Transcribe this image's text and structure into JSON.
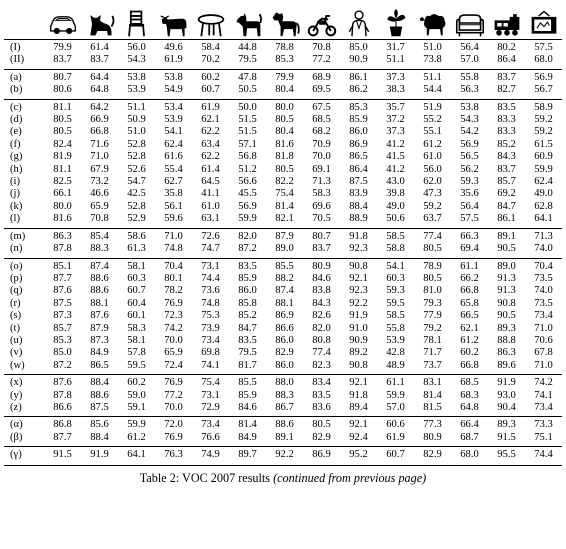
{
  "table": {
    "categories": [
      {
        "name": "car",
        "icon": "car-icon"
      },
      {
        "name": "cat",
        "icon": "cat-icon"
      },
      {
        "name": "chair",
        "icon": "chair-icon"
      },
      {
        "name": "cow",
        "icon": "cow-icon"
      },
      {
        "name": "diningtable",
        "icon": "table-icon"
      },
      {
        "name": "dog",
        "icon": "dog-icon"
      },
      {
        "name": "horse",
        "icon": "horse-icon"
      },
      {
        "name": "motorbike",
        "icon": "motorbike-icon"
      },
      {
        "name": "person",
        "icon": "person-icon"
      },
      {
        "name": "pottedplant",
        "icon": "plant-icon"
      },
      {
        "name": "sheep",
        "icon": "sheep-icon"
      },
      {
        "name": "sofa",
        "icon": "sofa-icon"
      },
      {
        "name": "train",
        "icon": "train-icon"
      },
      {
        "name": "tvmonitor",
        "icon": "tv-icon"
      }
    ],
    "groups": [
      [
        {
          "label": "(I)",
          "values": [
            "79.9",
            "61.4",
            "56.0",
            "49.6",
            "58.4",
            "44.8",
            "78.8",
            "70.8",
            "85.0",
            "31.7",
            "51.0",
            "56.4",
            "80.2",
            "57.5"
          ]
        },
        {
          "label": "(II)",
          "values": [
            "83.7",
            "83.7",
            "54.3",
            "61.9",
            "70.2",
            "79.5",
            "85.3",
            "77.2",
            "90.9",
            "51.1",
            "73.8",
            "57.0",
            "86.4",
            "68.0"
          ]
        }
      ],
      [
        {
          "label": "(a)",
          "values": [
            "80.7",
            "64.4",
            "53.8",
            "53.8",
            "60.2",
            "47.8",
            "79.9",
            "68.9",
            "86.1",
            "37.3",
            "51.1",
            "55.8",
            "83.7",
            "56.9"
          ]
        },
        {
          "label": "(b)",
          "values": [
            "80.6",
            "64.8",
            "53.9",
            "54.9",
            "60.7",
            "50.5",
            "80.4",
            "69.5",
            "86.2",
            "38.3",
            "54.4",
            "56.3",
            "82.7",
            "56.7"
          ]
        }
      ],
      [
        {
          "label": "(c)",
          "values": [
            "81.1",
            "64.2",
            "51.1",
            "53.4",
            "61.9",
            "50.0",
            "80.0",
            "67.5",
            "85.3",
            "35.7",
            "51.9",
            "53.8",
            "83.5",
            "58.9"
          ]
        },
        {
          "label": "(d)",
          "values": [
            "80.5",
            "66.9",
            "50.9",
            "53.9",
            "62.1",
            "51.5",
            "80.5",
            "68.5",
            "85.9",
            "37.2",
            "55.2",
            "54.3",
            "83.3",
            "59.2"
          ]
        },
        {
          "label": "(e)",
          "values": [
            "80.5",
            "66.8",
            "51.0",
            "54.1",
            "62.2",
            "51.5",
            "80.4",
            "68.2",
            "86.0",
            "37.3",
            "55.1",
            "54.2",
            "83.3",
            "59.2"
          ]
        },
        {
          "label": "(f)",
          "values": [
            "82.4",
            "71.6",
            "52.8",
            "62.4",
            "63.4",
            "57.1",
            "81.6",
            "70.9",
            "86.9",
            "41.2",
            "61.2",
            "56.9",
            "85.2",
            "61.5"
          ]
        },
        {
          "label": "(g)",
          "values": [
            "81.9",
            "71.0",
            "52.8",
            "61.6",
            "62.2",
            "56.8",
            "81.8",
            "70.0",
            "86.5",
            "41.5",
            "61.0",
            "56.5",
            "84.3",
            "60.9"
          ]
        },
        {
          "label": "(h)",
          "values": [
            "81.1",
            "67.9",
            "52.6",
            "55.4",
            "61.4",
            "51.2",
            "80.5",
            "69.1",
            "86.4",
            "41.2",
            "56.0",
            "56.2",
            "83.7",
            "59.9"
          ]
        },
        {
          "label": "(i)",
          "values": [
            "82.5",
            "73.2",
            "54.7",
            "62.7",
            "64.5",
            "56.6",
            "82.2",
            "71.3",
            "87.5",
            "43.0",
            "62.0",
            "59.3",
            "85.7",
            "62.4"
          ]
        },
        {
          "label": "(j)",
          "values": [
            "66.1",
            "46.6",
            "42.5",
            "35.8",
            "41.1",
            "45.5",
            "75.4",
            "58.3",
            "83.9",
            "39.8",
            "47.3",
            "35.6",
            "69.2",
            "49.0"
          ]
        },
        {
          "label": "(k)",
          "values": [
            "80.0",
            "65.9",
            "52.8",
            "56.1",
            "61.0",
            "56.9",
            "81.4",
            "69.6",
            "88.4",
            "49.0",
            "59.2",
            "56.4",
            "84.7",
            "62.8"
          ]
        },
        {
          "label": "(l)",
          "values": [
            "81.6",
            "70.8",
            "52.9",
            "59.6",
            "63.1",
            "59.9",
            "82.1",
            "70.5",
            "88.9",
            "50.6",
            "63.7",
            "57.5",
            "86.1",
            "64.1"
          ]
        }
      ],
      [
        {
          "label": "(m)",
          "values": [
            "86.3",
            "85.4",
            "58.6",
            "71.0",
            "72.6",
            "82.0",
            "87.9",
            "80.7",
            "91.8",
            "58.5",
            "77.4",
            "66.3",
            "89.1",
            "71.3"
          ]
        },
        {
          "label": "(n)",
          "values": [
            "87.8",
            "88.3",
            "61.3",
            "74.8",
            "74.7",
            "87.2",
            "89.0",
            "83.7",
            "92.3",
            "58.8",
            "80.5",
            "69.4",
            "90.5",
            "74.0"
          ]
        }
      ],
      [
        {
          "label": "(o)",
          "values": [
            "85.1",
            "87.4",
            "58.1",
            "70.4",
            "73.1",
            "83.5",
            "85.5",
            "80.9",
            "90.8",
            "54.1",
            "78.9",
            "61.1",
            "89.0",
            "70.4"
          ]
        },
        {
          "label": "(p)",
          "values": [
            "87.7",
            "88.6",
            "60.3",
            "80.1",
            "74.4",
            "85.9",
            "88.2",
            "84.6",
            "92.1",
            "60.3",
            "80.5",
            "66.2",
            "91.3",
            "73.5"
          ]
        },
        {
          "label": "(q)",
          "values": [
            "87.6",
            "88.6",
            "60.7",
            "78.2",
            "73.6",
            "86.0",
            "87.4",
            "83.8",
            "92.3",
            "59.3",
            "81.0",
            "66.8",
            "91.3",
            "74.0"
          ]
        },
        {
          "label": "(r)",
          "values": [
            "87.5",
            "88.1",
            "60.4",
            "76.9",
            "74.8",
            "85.8",
            "88.1",
            "84.3",
            "92.2",
            "59.5",
            "79.3",
            "65.8",
            "90.8",
            "73.5"
          ]
        },
        {
          "label": "(s)",
          "values": [
            "87.3",
            "87.6",
            "60.1",
            "72.3",
            "75.3",
            "85.2",
            "86.9",
            "82.6",
            "91.9",
            "58.5",
            "77.9",
            "66.5",
            "90.5",
            "73.4"
          ]
        },
        {
          "label": "(t)",
          "values": [
            "85.7",
            "87.9",
            "58.3",
            "74.2",
            "73.9",
            "84.7",
            "86.6",
            "82.0",
            "91.0",
            "55.8",
            "79.2",
            "62.1",
            "89.3",
            "71.0"
          ]
        },
        {
          "label": "(u)",
          "values": [
            "85.3",
            "87.3",
            "58.1",
            "70.0",
            "73.4",
            "83.5",
            "86.0",
            "80.8",
            "90.9",
            "53.9",
            "78.1",
            "61.2",
            "88.8",
            "70.6"
          ]
        },
        {
          "label": "(v)",
          "values": [
            "85.0",
            "84.9",
            "57.8",
            "65.9",
            "69.8",
            "79.5",
            "82.9",
            "77.4",
            "89.2",
            "42.8",
            "71.7",
            "60.2",
            "86.3",
            "67.8"
          ]
        },
        {
          "label": "(w)",
          "values": [
            "87.2",
            "86.5",
            "59.5",
            "72.4",
            "74.1",
            "81.7",
            "86.0",
            "82.3",
            "90.8",
            "48.9",
            "73.7",
            "66.8",
            "89.6",
            "71.0"
          ]
        }
      ],
      [
        {
          "label": "(x)",
          "values": [
            "87.6",
            "88.4",
            "60.2",
            "76.9",
            "75.4",
            "85.5",
            "88.0",
            "83.4",
            "92.1",
            "61.1",
            "83.1",
            "68.5",
            "91.9",
            "74.2"
          ]
        },
        {
          "label": "(y)",
          "values": [
            "87.8",
            "88.6",
            "59.0",
            "77.2",
            "73.1",
            "85.9",
            "88.3",
            "83.5",
            "91.8",
            "59.9",
            "81.4",
            "68.3",
            "93.0",
            "74.1"
          ]
        },
        {
          "label": "(z)",
          "values": [
            "86.6",
            "87.5",
            "59.1",
            "70.0",
            "72.9",
            "84.6",
            "86.7",
            "83.6",
            "89.4",
            "57.0",
            "81.5",
            "64.8",
            "90.4",
            "73.4"
          ]
        }
      ],
      [
        {
          "label": "(α)",
          "values": [
            "86.8",
            "85.6",
            "59.9",
            "72.0",
            "73.4",
            "81.4",
            "88.6",
            "80.5",
            "92.1",
            "60.6",
            "77.3",
            "66.4",
            "89.3",
            "73.3"
          ]
        },
        {
          "label": "(β)",
          "values": [
            "87.7",
            "88.4",
            "61.2",
            "76.9",
            "76.6",
            "84.9",
            "89.1",
            "82.9",
            "92.4",
            "61.9",
            "80.9",
            "68.7",
            "91.5",
            "75.1"
          ]
        }
      ],
      [
        {
          "label": "(γ)",
          "values": [
            "91.5",
            "91.9",
            "64.1",
            "76.3",
            "74.9",
            "89.7",
            "92.2",
            "86.9",
            "95.2",
            "60.7",
            "82.9",
            "68.0",
            "95.5",
            "74.4"
          ]
        }
      ]
    ]
  },
  "caption": {
    "main": "Table 2: VOC 2007 results ",
    "italic": "(continued from previous page)"
  }
}
